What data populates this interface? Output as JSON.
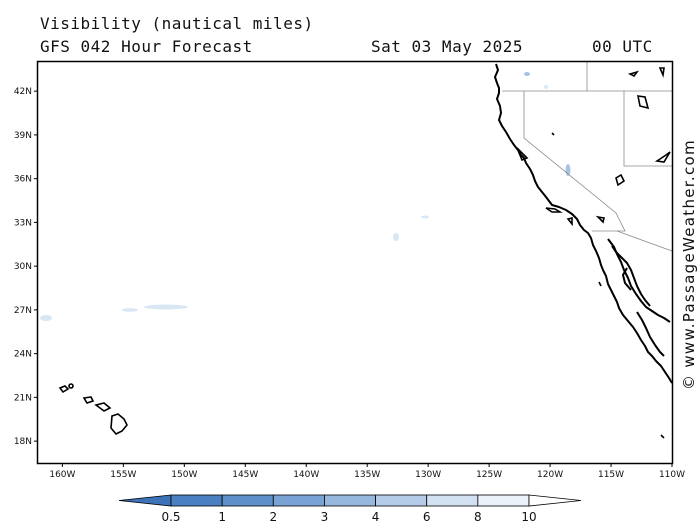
{
  "header": {
    "title": "Visibility (nautical miles)",
    "subtitle": "GFS 042 Hour Forecast",
    "date": "Sat 03 May 2025",
    "time": "00 UTC"
  },
  "credit": "© www.PassageWeather.com",
  "map": {
    "lon_range": [
      -162,
      -110
    ],
    "lat_range": [
      16.5,
      44
    ],
    "lat_ticks": [
      {
        "v": 42,
        "label": "42N"
      },
      {
        "v": 39,
        "label": "39N"
      },
      {
        "v": 36,
        "label": "36N"
      },
      {
        "v": 33,
        "label": "33N"
      },
      {
        "v": 30,
        "label": "30N"
      },
      {
        "v": 27,
        "label": "27N"
      },
      {
        "v": 24,
        "label": "24N"
      },
      {
        "v": 21,
        "label": "21N"
      },
      {
        "v": 18,
        "label": "18N"
      }
    ],
    "lon_ticks": [
      {
        "v": -160,
        "label": "160W"
      },
      {
        "v": -155,
        "label": "155W"
      },
      {
        "v": -150,
        "label": "150W"
      },
      {
        "v": -145,
        "label": "145W"
      },
      {
        "v": -140,
        "label": "140W"
      },
      {
        "v": -135,
        "label": "135W"
      },
      {
        "v": -130,
        "label": "130W"
      },
      {
        "v": -125,
        "label": "125W"
      },
      {
        "v": -120,
        "label": "120W"
      },
      {
        "v": -115,
        "label": "115W"
      },
      {
        "v": -110,
        "label": "110W"
      }
    ]
  },
  "colorbar": {
    "labels": [
      "0.5",
      "1",
      "2",
      "3",
      "4",
      "6",
      "8",
      "10"
    ],
    "colors": [
      "#4a7fc1",
      "#5e8fcb",
      "#7aa3d5",
      "#97b8de",
      "#b4cce8",
      "#d2e1f2",
      "#eaf1f9",
      "#ffffff"
    ],
    "low_color": "#3e72b8"
  }
}
